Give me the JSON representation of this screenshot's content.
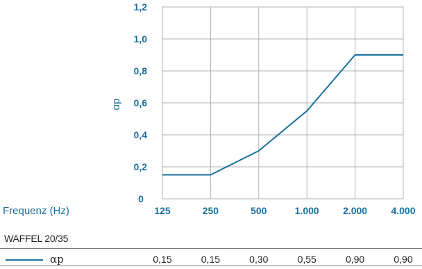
{
  "chart_data": {
    "type": "line",
    "categories": [
      "125",
      "250",
      "500",
      "1.000",
      "2.000",
      "4.000"
    ],
    "xlabel": "Frequenz (Hz)",
    "ylabel": "αp",
    "ylim": [
      0,
      1.2
    ],
    "yticks": [
      "0",
      "0,2",
      "0,4",
      "0,6",
      "0,8",
      "1,0",
      "1,2"
    ],
    "grid": true,
    "series": [
      {
        "name": "WAFFEL 20/35",
        "values": [
          0.15,
          0.15,
          0.3,
          0.55,
          0.9,
          0.9
        ]
      }
    ],
    "value_labels": [
      "0,15",
      "0,15",
      "0,30",
      "0,55",
      "0,90",
      "0,90"
    ],
    "legend_symbol": "αp",
    "line_color": "#1a6f9e",
    "grid_color": "#b0b0b0"
  }
}
